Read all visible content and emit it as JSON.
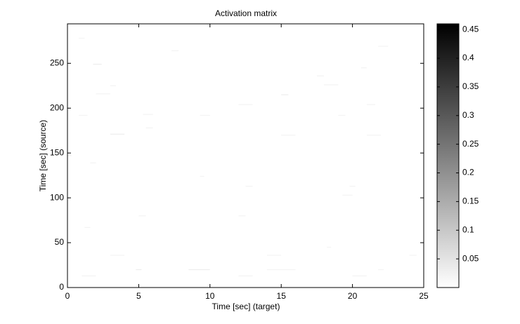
{
  "chart_data": {
    "type": "heatmap",
    "title": "Activation matrix",
    "xlabel": "Time [sec] (target)",
    "ylabel": "Time [sec] (source)",
    "xlim": [
      0,
      25
    ],
    "ylim": [
      0,
      294
    ],
    "xticks": [
      0,
      5,
      10,
      15,
      20,
      25
    ],
    "yticks": [
      0,
      50,
      100,
      150,
      200,
      250
    ],
    "colormap": "gray-reversed",
    "colorbar": {
      "clim": [
        0,
        0.46
      ],
      "ticks": [
        0.05,
        0.1,
        0.15,
        0.2,
        0.25,
        0.3,
        0.35,
        0.4,
        0.45
      ]
    },
    "cells": [
      {
        "x": [
          0.8,
          1.2
        ],
        "y": 278,
        "value": 0.02
      },
      {
        "x": [
          1.8,
          2.4
        ],
        "y": 249,
        "value": 0.03
      },
      {
        "x": [
          3.0,
          3.4
        ],
        "y": 225,
        "value": 0.02
      },
      {
        "x": [
          2.0,
          3.0
        ],
        "y": 216,
        "value": 0.02
      },
      {
        "x": [
          15.0,
          15.5
        ],
        "y": 215,
        "value": 0.03
      },
      {
        "x": [
          18.0,
          19.0
        ],
        "y": 226,
        "value": 0.02
      },
      {
        "x": [
          21.0,
          21.6
        ],
        "y": 204,
        "value": 0.02
      },
      {
        "x": [
          12.0,
          13.0
        ],
        "y": 204,
        "value": 0.02
      },
      {
        "x": [
          5.3,
          6.0
        ],
        "y": 193,
        "value": 0.02
      },
      {
        "x": [
          9.3,
          10.0
        ],
        "y": 192,
        "value": 0.02
      },
      {
        "x": [
          0.8,
          1.4
        ],
        "y": 192,
        "value": 0.02
      },
      {
        "x": [
          19.0,
          19.5
        ],
        "y": 192,
        "value": 0.02
      },
      {
        "x": [
          3.0,
          4.0
        ],
        "y": 171,
        "value": 0.03
      },
      {
        "x": [
          15.0,
          16.0
        ],
        "y": 170,
        "value": 0.02
      },
      {
        "x": [
          21.0,
          22.0
        ],
        "y": 170,
        "value": 0.02
      },
      {
        "x": [
          5.5,
          6.0
        ],
        "y": 178,
        "value": 0.02
      },
      {
        "x": [
          0.0,
          0.3
        ],
        "y": 147,
        "value": 0.02
      },
      {
        "x": [
          1.6,
          2.0
        ],
        "y": 139,
        "value": 0.02
      },
      {
        "x": [
          9.3,
          9.6
        ],
        "y": 124,
        "value": 0.02
      },
      {
        "x": [
          12.5,
          13.0
        ],
        "y": 113,
        "value": 0.02
      },
      {
        "x": [
          19.8,
          20.2
        ],
        "y": 113,
        "value": 0.02
      },
      {
        "x": [
          19.3,
          20.0
        ],
        "y": 103,
        "value": 0.02
      },
      {
        "x": [
          5.0,
          5.5
        ],
        "y": 80,
        "value": 0.02
      },
      {
        "x": [
          12.0,
          12.5
        ],
        "y": 80,
        "value": 0.02
      },
      {
        "x": [
          1.2,
          1.6
        ],
        "y": 67,
        "value": 0.02
      },
      {
        "x": [
          18.2,
          18.5
        ],
        "y": 45,
        "value": 0.02
      },
      {
        "x": [
          3.0,
          4.0
        ],
        "y": 36,
        "value": 0.02
      },
      {
        "x": [
          14.0,
          15.0
        ],
        "y": 36,
        "value": 0.02
      },
      {
        "x": [
          24.0,
          24.5
        ],
        "y": 36,
        "value": 0.02
      },
      {
        "x": [
          4.8,
          5.2
        ],
        "y": 20,
        "value": 0.03
      },
      {
        "x": [
          8.5,
          10.0
        ],
        "y": 20,
        "value": 0.03
      },
      {
        "x": [
          14.0,
          16.0
        ],
        "y": 20,
        "value": 0.02
      },
      {
        "x": [
          21.8,
          22.2
        ],
        "y": 20,
        "value": 0.02
      },
      {
        "x": [
          1.0,
          2.0
        ],
        "y": 13,
        "value": 0.02
      },
      {
        "x": [
          12.0,
          13.0
        ],
        "y": 13,
        "value": 0.02
      },
      {
        "x": [
          20.0,
          21.0
        ],
        "y": 13,
        "value": 0.02
      },
      {
        "x": [
          21.8,
          22.5
        ],
        "y": 269,
        "value": 0.02
      },
      {
        "x": [
          7.3,
          7.8
        ],
        "y": 264,
        "value": 0.02
      },
      {
        "x": [
          20.6,
          21.0
        ],
        "y": 245,
        "value": 0.02
      },
      {
        "x": [
          17.5,
          18.0
        ],
        "y": 236,
        "value": 0.02
      }
    ]
  }
}
